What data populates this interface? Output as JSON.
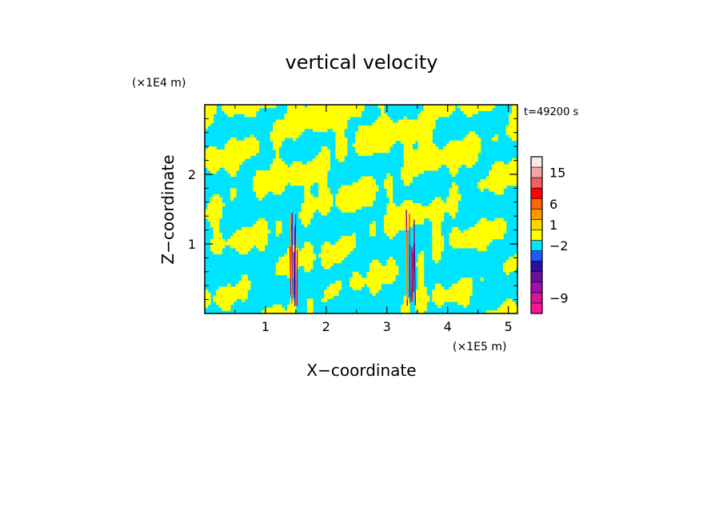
{
  "chart_data": {
    "type": "heatmap",
    "title": "vertical velocity",
    "xlabel": "X−coordinate",
    "ylabel": "Z−coordinate",
    "x_unit": "(×1E5 m)",
    "y_unit": "(×1E4 m)",
    "time_label": "t=49200 s",
    "xlim": [
      0,
      5.15
    ],
    "ylim": [
      0,
      3.0
    ],
    "x_ticks": [
      {
        "value": 1,
        "label": "1"
      },
      {
        "value": 2,
        "label": "2"
      },
      {
        "value": 3,
        "label": "3"
      },
      {
        "value": 4,
        "label": "4"
      },
      {
        "value": 5,
        "label": "5"
      }
    ],
    "y_ticks": [
      {
        "value": 1,
        "label": "1"
      },
      {
        "value": 2,
        "label": "2"
      }
    ],
    "colorbar": {
      "levels": [
        {
          "color": "#ff1493"
        },
        {
          "color": "#dd1199"
        },
        {
          "color": "#a010b0"
        },
        {
          "color": "#6a0fa0"
        },
        {
          "color": "#2a10a0"
        },
        {
          "color": "#1e5aff"
        },
        {
          "color": "#00e5ff"
        },
        {
          "color": "#ffff00"
        },
        {
          "color": "#ffd700"
        },
        {
          "color": "#ff9900"
        },
        {
          "color": "#ff6600"
        },
        {
          "color": "#ff0000"
        },
        {
          "color": "#f06060"
        },
        {
          "color": "#f5a5a5"
        },
        {
          "color": "#ffe8e8"
        }
      ],
      "labels": [
        {
          "value": "15",
          "level": 13
        },
        {
          "value": "6",
          "level": 10
        },
        {
          "value": "1",
          "level": 8
        },
        {
          "value": "−2",
          "level": 6
        },
        {
          "value": "−9",
          "level": 1
        }
      ]
    },
    "field": {
      "description_colors": {
        "negative": "#00e5ff",
        "positive": "#ffff00"
      },
      "updraft_columns_x": [
        1.45,
        3.4
      ]
    }
  }
}
